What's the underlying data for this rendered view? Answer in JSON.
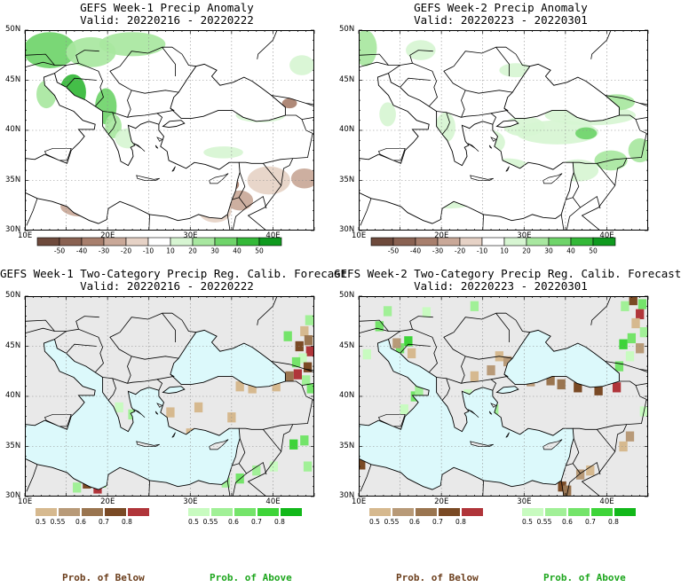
{
  "panels": [
    {
      "title": "GEFS Week-1 Precip Anomaly",
      "valid": "Valid: 20220216 - 20220222",
      "type": "anomaly"
    },
    {
      "title": "GEFS Week-2 Precip Anomaly",
      "valid": "Valid: 20220223 - 20220301",
      "type": "anomaly"
    },
    {
      "title": "GEFS Week-1 Two-Category Precip Reg. Calib. Forecast",
      "valid": "Valid: 20220216 - 20220222",
      "type": "probability"
    },
    {
      "title": "GEFS Week-2 Two-Category Precip Reg. Calib. Forecast",
      "valid": "Valid: 20220223 - 20220301",
      "type": "probability"
    }
  ],
  "axes": {
    "lat_labels": [
      "50N",
      "45N",
      "40N",
      "35N",
      "30N"
    ],
    "lon_labels": [
      "10E",
      "20E",
      "30E",
      "40E"
    ]
  },
  "anomaly_colorbar": {
    "labels": [
      "-50",
      "-40",
      "-30",
      "-20",
      "-10",
      "10",
      "20",
      "30",
      "40",
      "50"
    ],
    "colors": [
      "#6e4a3c",
      "#8a6252",
      "#a87f6d",
      "#c9a898",
      "#e6d2c6",
      "#ffffff",
      "#d7f5d2",
      "#a8e7a0",
      "#6fd46a",
      "#34b838",
      "#0f9a1f"
    ]
  },
  "prob_below_colorbar": {
    "labels": [
      "0.5",
      "0.55",
      "0.6",
      "0.7",
      "0.8"
    ],
    "colors": [
      "#d6b98f",
      "#b89a78",
      "#9a7550",
      "#7a4a25",
      "#b0353a"
    ]
  },
  "prob_above_colorbar": {
    "labels": [
      "0.5",
      "0.55",
      "0.6",
      "0.7",
      "0.8"
    ],
    "colors": [
      "#c8fbc0",
      "#a1f097",
      "#74e46a",
      "#3ed439",
      "#12b81a"
    ]
  },
  "footer": {
    "below": "Prob. of Below",
    "above": "Prob. of Above",
    "below_color": "#6b3e1c",
    "above_color": "#1da61d"
  },
  "map_colors": {
    "sea_anomaly": "#ffffff",
    "sea_probability": "#dcf9fb",
    "land_probability": "#e9e9e9",
    "coast": "#000000"
  }
}
